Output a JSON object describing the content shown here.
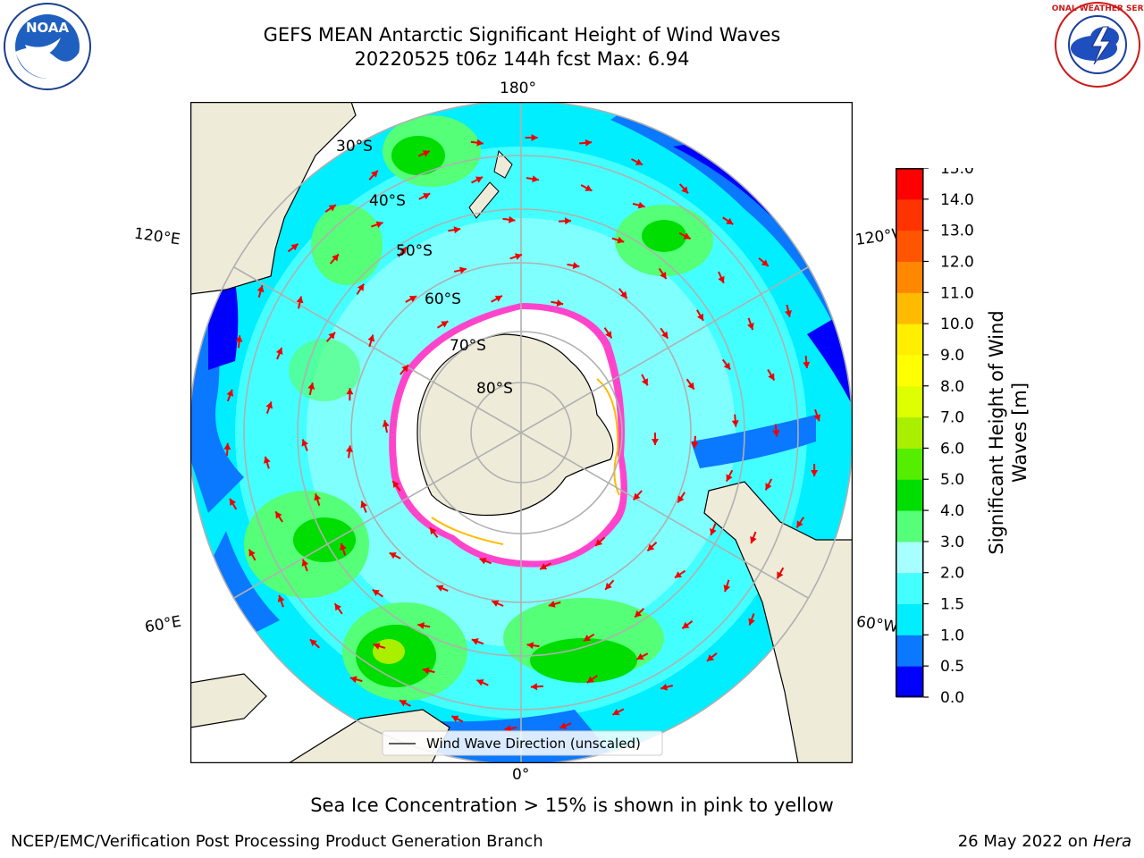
{
  "header": {
    "title_line1": "GEFS MEAN Antarctic Significant Height of Wind Waves",
    "title_line2": "20220525 t06z 144h fcst   Max: 6.94",
    "logo_left_text": "NOAA",
    "logo_right_text": "NATIONAL WEATHER SERVICE"
  },
  "map": {
    "lon_labels": {
      "top": "180°",
      "bottom": "0°",
      "left_upper": "120°E",
      "left_lower": "60°E",
      "right_upper": "120°W",
      "right_lower": "60°W"
    },
    "lat_labels": [
      "30°S",
      "40°S",
      "50°S",
      "60°S",
      "70°S",
      "80°S"
    ],
    "legend_label": "Wind Wave Direction (unscaled)",
    "colors": {
      "land": "#efebd9",
      "ice": "#ffffff",
      "ice_edge": "#ff44cc",
      "arrow": "#ee0000"
    }
  },
  "colorbar": {
    "label": "Significant Height of Wind Waves [m]",
    "ticks": [
      "0.0",
      "0.5",
      "1.0",
      "1.5",
      "2.0",
      "3.0",
      "4.0",
      "5.0",
      "6.0",
      "7.0",
      "8.0",
      "9.0",
      "10.0",
      "11.0",
      "12.0",
      "13.0",
      "14.0",
      "15.0"
    ],
    "colors": [
      "#0000ff",
      "#0a78ff",
      "#00eeff",
      "#44ffff",
      "#a8ffff",
      "#55ff77",
      "#00dd00",
      "#55ee00",
      "#aaee00",
      "#ddff00",
      "#ffff00",
      "#ffee00",
      "#ffbb00",
      "#ff8800",
      "#ff5500",
      "#ff3300",
      "#ff0000"
    ]
  },
  "footer": {
    "note": "Sea Ice Concentration > 15% is shown in pink to yellow",
    "credit": "NCEP/EMC/Verification Post Processing Product Generation Branch",
    "date": "26 May 2022 on ",
    "machine": "Hera"
  }
}
